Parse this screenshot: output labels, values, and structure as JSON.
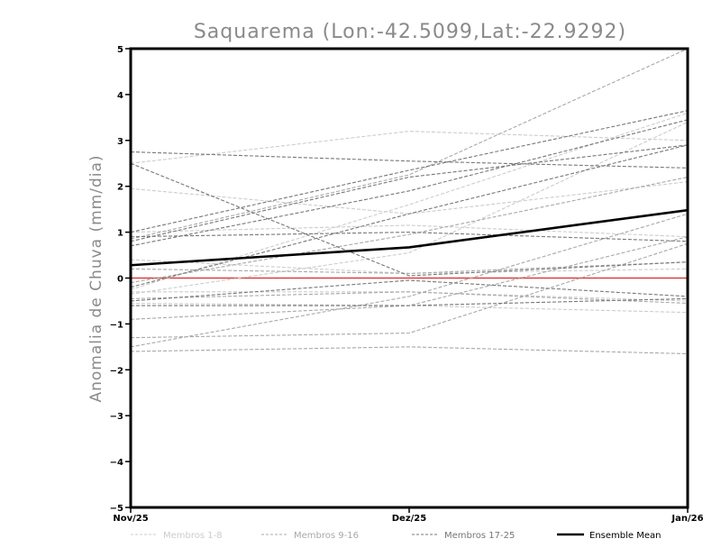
{
  "chart_data": {
    "type": "line",
    "title": "Saquarema (Lon:-42.5099,Lat:-22.9292)",
    "xlabel": "",
    "ylabel": "Anomalia de Chuva (mm/dia)",
    "categories": [
      "Nov/25",
      "Dez/25",
      "Jan/26"
    ],
    "ylim": [
      -5,
      5
    ],
    "yticks": [
      -5,
      -4,
      -3,
      -2,
      -1,
      0,
      1,
      2,
      3,
      4,
      5
    ],
    "zero_line_color": "#e03c3c",
    "series": [
      {
        "name": "Membros 1-8",
        "group": 1,
        "values": [
          2.5,
          3.2,
          3.0
        ]
      },
      {
        "name": "Membros 1-8",
        "group": 1,
        "values": [
          1.95,
          1.4,
          2.1
        ]
      },
      {
        "name": "Membros 1-8",
        "group": 1,
        "values": [
          1.0,
          1.15,
          0.9
        ]
      },
      {
        "name": "Membros 1-8",
        "group": 1,
        "values": [
          0.4,
          0.1,
          0.2
        ]
      },
      {
        "name": "Membros 1-8",
        "group": 1,
        "values": [
          -0.25,
          1.6,
          3.6
        ]
      },
      {
        "name": "Membros 1-8",
        "group": 1,
        "values": [
          -0.35,
          0.55,
          3.4
        ]
      },
      {
        "name": "Membros 1-8",
        "group": 1,
        "values": [
          -0.3,
          -0.3,
          -0.5
        ]
      },
      {
        "name": "Membros 1-8",
        "group": 1,
        "values": [
          -0.55,
          -0.6,
          -0.75
        ]
      },
      {
        "name": "Membros 9-16",
        "group": 2,
        "values": [
          0.85,
          2.25,
          5.0
        ]
      },
      {
        "name": "Membros 9-16",
        "group": 2,
        "values": [
          0.2,
          0.1,
          0.35
        ]
      },
      {
        "name": "Membros 9-16",
        "group": 2,
        "values": [
          -0.1,
          0.95,
          2.2
        ]
      },
      {
        "name": "Membros 9-16",
        "group": 2,
        "values": [
          -0.45,
          -0.3,
          -0.55
        ]
      },
      {
        "name": "Membros 9-16",
        "group": 2,
        "values": [
          -0.9,
          -0.6,
          0.9
        ]
      },
      {
        "name": "Membros 9-16",
        "group": 2,
        "values": [
          -1.3,
          -1.2,
          0.75
        ]
      },
      {
        "name": "Membros 9-16",
        "group": 2,
        "values": [
          -1.5,
          -0.4,
          1.4
        ]
      },
      {
        "name": "Membros 9-16",
        "group": 2,
        "values": [
          -1.6,
          -1.5,
          -1.65
        ]
      },
      {
        "name": "Membros 17-25",
        "group": 3,
        "values": [
          2.75,
          2.55,
          2.4
        ]
      },
      {
        "name": "Membros 17-25",
        "group": 3,
        "values": [
          2.5,
          0.05,
          0.35
        ]
      },
      {
        "name": "Membros 17-25",
        "group": 3,
        "values": [
          1.0,
          2.35,
          3.65
        ]
      },
      {
        "name": "Membros 17-25",
        "group": 3,
        "values": [
          0.8,
          2.2,
          2.9
        ]
      },
      {
        "name": "Membros 17-25",
        "group": 3,
        "values": [
          0.7,
          1.9,
          3.45
        ]
      },
      {
        "name": "Membros 17-25",
        "group": 3,
        "values": [
          0.9,
          1.0,
          0.8
        ]
      },
      {
        "name": "Membros 17-25",
        "group": 3,
        "values": [
          -0.2,
          1.4,
          2.9
        ]
      },
      {
        "name": "Membros 17-25",
        "group": 3,
        "values": [
          -0.5,
          -0.05,
          -0.4
        ]
      },
      {
        "name": "Membros 17-25",
        "group": 3,
        "values": [
          -0.6,
          -0.6,
          -0.45
        ]
      },
      {
        "name": "Ensemble Mean",
        "group": 0,
        "values": [
          0.28,
          0.67,
          1.48
        ]
      }
    ],
    "legend": [
      {
        "label": "Membros 1-8",
        "color": "#cccccc",
        "style": "dashed"
      },
      {
        "label": "Membros 9-16",
        "color": "#a8a8a8",
        "style": "dashed"
      },
      {
        "label": "Membros 17-25",
        "color": "#777777",
        "style": "dashed"
      },
      {
        "label": "Ensemble Mean",
        "color": "#000000",
        "style": "solid"
      }
    ],
    "group_colors": {
      "0": "#000000",
      "1": "#cccccc",
      "2": "#a8a8a8",
      "3": "#777777"
    }
  }
}
